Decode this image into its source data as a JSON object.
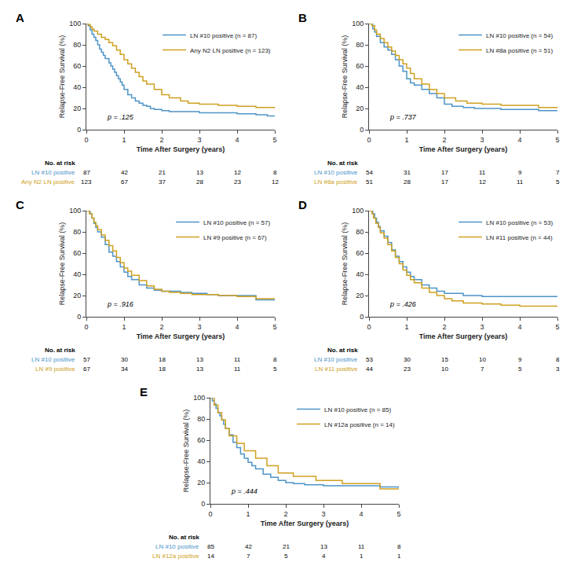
{
  "chart_data": [
    {
      "type": "line",
      "title": "A",
      "line_style": "step",
      "xlabel": "Time After Surgery (years)",
      "ylabel": "Relapse-Free Survival (%)",
      "xlim": [
        0,
        5
      ],
      "ylim": [
        0,
        100
      ],
      "xticks": [
        0,
        1,
        2,
        3,
        4,
        5
      ],
      "yticks": [
        0,
        20,
        40,
        60,
        80,
        100
      ],
      "grid": false,
      "legend": "upper right",
      "annotations": [
        {
          "text": "p = .125",
          "x": 0.5,
          "y": 7
        }
      ],
      "risk_header": "No. at risk",
      "risk_times": [
        0,
        1,
        2,
        3,
        4,
        5
      ],
      "series": [
        {
          "name": "LN #10 positive (n = 87)",
          "color": "#4D94C8",
          "risk_label": "LN #10 positive",
          "at_risk": [
            87,
            42,
            21,
            13,
            12,
            8
          ],
          "x": [
            0,
            0.05,
            0.1,
            0.15,
            0.2,
            0.25,
            0.3,
            0.35,
            0.4,
            0.45,
            0.5,
            0.6,
            0.65,
            0.7,
            0.75,
            0.8,
            0.85,
            0.9,
            0.95,
            1.0,
            1.1,
            1.2,
            1.3,
            1.4,
            1.5,
            1.6,
            1.7,
            1.8,
            2.0,
            2.2,
            2.5,
            2.7,
            3.0,
            3.5,
            4.0,
            4.5,
            4.8,
            5.0
          ],
          "values": [
            100,
            98,
            94,
            90,
            87,
            84,
            80,
            76,
            73,
            70,
            67,
            63,
            60,
            57,
            54,
            51,
            48,
            45,
            42,
            38,
            33,
            30,
            27,
            25,
            23,
            22,
            20,
            19,
            18,
            17,
            17,
            17,
            16,
            16,
            15,
            14,
            13,
            13
          ]
        },
        {
          "name": "Any N2 LN positive (n = 123)",
          "color": "#CFA020",
          "risk_label": "Any N2 LN positive",
          "at_risk": [
            123,
            67,
            37,
            28,
            23,
            12
          ],
          "x": [
            0,
            0.05,
            0.1,
            0.15,
            0.2,
            0.3,
            0.4,
            0.5,
            0.6,
            0.7,
            0.8,
            0.9,
            1.0,
            1.1,
            1.2,
            1.3,
            1.4,
            1.5,
            1.6,
            1.8,
            2.0,
            2.2,
            2.5,
            2.7,
            3.0,
            3.2,
            3.5,
            4.0,
            4.5,
            5.0
          ],
          "values": [
            100,
            99,
            97,
            95,
            93,
            90,
            87,
            85,
            82,
            79,
            75,
            71,
            66,
            62,
            58,
            54,
            50,
            46,
            43,
            38,
            33,
            30,
            27,
            25,
            24,
            24,
            23,
            22,
            21,
            20
          ]
        }
      ]
    },
    {
      "type": "line",
      "title": "B",
      "line_style": "step",
      "xlabel": "Time After Surgery (years)",
      "ylabel": "Relapse-Free Survival (%)",
      "xlim": [
        0,
        5
      ],
      "ylim": [
        0,
        100
      ],
      "xticks": [
        0,
        1,
        2,
        3,
        4,
        5
      ],
      "yticks": [
        0,
        20,
        40,
        60,
        80,
        100
      ],
      "grid": false,
      "legend": "upper right",
      "annotations": [
        {
          "text": "p = .737",
          "x": 0.5,
          "y": 7
        }
      ],
      "risk_header": "No. at risk",
      "risk_times": [
        0,
        1,
        2,
        3,
        4,
        5
      ],
      "series": [
        {
          "name": "LN #10 positive (n = 54)",
          "color": "#4D94C8",
          "risk_label": "LN #10 positive",
          "at_risk": [
            54,
            31,
            17,
            11,
            9,
            7
          ],
          "x": [
            0,
            0.1,
            0.15,
            0.2,
            0.3,
            0.4,
            0.5,
            0.6,
            0.7,
            0.8,
            0.9,
            1.0,
            1.1,
            1.2,
            1.4,
            1.6,
            1.8,
            2.0,
            2.2,
            2.5,
            2.8,
            3.0,
            3.5,
            4.0,
            4.5,
            5.0
          ],
          "values": [
            100,
            95,
            92,
            88,
            82,
            78,
            75,
            71,
            66,
            60,
            55,
            48,
            44,
            42,
            38,
            34,
            30,
            24,
            22,
            21,
            20,
            20,
            19,
            19,
            18,
            18
          ]
        },
        {
          "name": "LN #8a positive (n = 51)",
          "color": "#CFA020",
          "risk_label": "LN #8a positive",
          "at_risk": [
            51,
            28,
            17,
            12,
            11,
            5
          ],
          "x": [
            0,
            0.08,
            0.15,
            0.2,
            0.3,
            0.4,
            0.5,
            0.6,
            0.7,
            0.8,
            0.9,
            1.0,
            1.1,
            1.2,
            1.4,
            1.6,
            1.8,
            2.0,
            2.3,
            2.6,
            3.0,
            3.5,
            4.0,
            4.5,
            5.0
          ],
          "values": [
            100,
            98,
            94,
            90,
            86,
            82,
            78,
            74,
            70,
            66,
            62,
            58,
            53,
            48,
            43,
            38,
            34,
            30,
            27,
            25,
            24,
            23,
            23,
            21,
            20
          ]
        }
      ]
    },
    {
      "type": "line",
      "title": "C",
      "line_style": "step",
      "xlabel": "Time After Surgery (years)",
      "ylabel": "Relapse-Free Survival (%)",
      "xlim": [
        0,
        5
      ],
      "ylim": [
        0,
        100
      ],
      "xticks": [
        0,
        1,
        2,
        3,
        4,
        5
      ],
      "yticks": [
        0,
        20,
        40,
        60,
        80,
        100
      ],
      "grid": false,
      "legend": "upper right",
      "annotations": [
        {
          "text": "p = .916",
          "x": 0.5,
          "y": 7
        }
      ],
      "risk_header": "No. at risk",
      "risk_times": [
        0,
        1,
        2,
        3,
        4,
        5
      ],
      "series": [
        {
          "name": "LN #10 positive (n = 57)",
          "color": "#4D94C8",
          "risk_label": "LN #10 positive",
          "at_risk": [
            57,
            30,
            18,
            13,
            11,
            8
          ],
          "x": [
            0,
            0.1,
            0.15,
            0.2,
            0.25,
            0.3,
            0.4,
            0.5,
            0.6,
            0.7,
            0.8,
            0.9,
            1.0,
            1.1,
            1.2,
            1.4,
            1.6,
            1.8,
            2.0,
            2.2,
            2.5,
            2.8,
            3.0,
            3.2,
            3.5,
            4.0,
            4.5,
            5.0
          ],
          "values": [
            100,
            97,
            93,
            88,
            84,
            80,
            75,
            68,
            61,
            57,
            52,
            47,
            42,
            38,
            35,
            30,
            27,
            25,
            24,
            24,
            23,
            22,
            22,
            21,
            20,
            20,
            16,
            16
          ]
        },
        {
          "name": "LN #9 positive (n = 67)",
          "color": "#CFA020",
          "risk_label": "LN #9 positive",
          "at_risk": [
            67,
            34,
            18,
            13,
            11,
            5
          ],
          "x": [
            0,
            0.08,
            0.15,
            0.2,
            0.25,
            0.3,
            0.4,
            0.5,
            0.6,
            0.7,
            0.8,
            0.9,
            1.0,
            1.1,
            1.2,
            1.4,
            1.6,
            1.8,
            2.0,
            2.2,
            2.5,
            2.8,
            3.0,
            3.5,
            4.0,
            4.5,
            5.0
          ],
          "values": [
            100,
            97,
            93,
            89,
            86,
            82,
            77,
            72,
            67,
            62,
            56,
            51,
            46,
            43,
            39,
            34,
            29,
            26,
            24,
            23,
            22,
            21,
            21,
            20,
            19,
            17,
            17
          ]
        }
      ]
    },
    {
      "type": "line",
      "title": "D",
      "line_style": "step",
      "xlabel": "Time After Surgery (years)",
      "ylabel": "Relapse-Free Survival (%)",
      "xlim": [
        0,
        5
      ],
      "ylim": [
        0,
        100
      ],
      "xticks": [
        0,
        1,
        2,
        3,
        4,
        5
      ],
      "yticks": [
        0,
        20,
        40,
        60,
        80,
        100
      ],
      "grid": false,
      "legend": "upper right",
      "annotations": [
        {
          "text": "p = .426",
          "x": 0.5,
          "y": 7
        }
      ],
      "risk_header": "No. at risk",
      "risk_times": [
        0,
        1,
        2,
        3,
        4,
        5
      ],
      "series": [
        {
          "name": "LN #10 positive (n = 53)",
          "color": "#4D94C8",
          "risk_label": "LN #10 positive",
          "at_risk": [
            53,
            30,
            15,
            10,
            9,
            8
          ],
          "x": [
            0,
            0.1,
            0.15,
            0.2,
            0.25,
            0.3,
            0.4,
            0.5,
            0.6,
            0.7,
            0.8,
            0.9,
            1.0,
            1.1,
            1.2,
            1.4,
            1.6,
            1.8,
            2.0,
            2.5,
            3.0,
            3.5,
            4.0,
            4.5,
            5.0
          ],
          "values": [
            100,
            97,
            93,
            89,
            85,
            81,
            76,
            70,
            63,
            57,
            52,
            47,
            42,
            38,
            35,
            30,
            27,
            24,
            22,
            20,
            19,
            19,
            19,
            19,
            19
          ]
        },
        {
          "name": "LN #11 positive (n = 44)",
          "color": "#CFA020",
          "risk_label": "LN #11 positive",
          "at_risk": [
            44,
            23,
            10,
            7,
            5,
            3
          ],
          "x": [
            0,
            0.08,
            0.12,
            0.18,
            0.25,
            0.3,
            0.4,
            0.5,
            0.6,
            0.7,
            0.8,
            0.9,
            1.0,
            1.1,
            1.2,
            1.4,
            1.6,
            1.8,
            2.0,
            2.2,
            2.5,
            3.0,
            3.5,
            4.0,
            4.5,
            5.0
          ],
          "values": [
            100,
            97,
            93,
            88,
            84,
            79,
            74,
            68,
            62,
            56,
            50,
            44,
            39,
            35,
            32,
            27,
            23,
            20,
            17,
            15,
            13,
            12,
            11,
            10,
            10,
            10
          ]
        }
      ]
    },
    {
      "type": "line",
      "title": "E",
      "line_style": "step",
      "xlabel": "Time After Surgery (years)",
      "ylabel": "Relapse-Free Survival (%)",
      "xlim": [
        0,
        5
      ],
      "ylim": [
        0,
        100
      ],
      "xticks": [
        0,
        1,
        2,
        3,
        4,
        5
      ],
      "yticks": [
        0,
        20,
        40,
        60,
        80,
        100
      ],
      "grid": false,
      "legend": "upper right",
      "annotations": [
        {
          "text": "p = .444",
          "x": 0.5,
          "y": 7
        }
      ],
      "risk_header": "No. at risk",
      "risk_times": [
        0,
        1,
        2,
        3,
        4,
        5
      ],
      "series": [
        {
          "name": "LN #10 positive (n = 85)",
          "color": "#4D94C8",
          "risk_label": "LN #10 positive",
          "at_risk": [
            85,
            42,
            21,
            13,
            11,
            8
          ],
          "x": [
            0,
            0.05,
            0.1,
            0.15,
            0.2,
            0.25,
            0.3,
            0.35,
            0.4,
            0.5,
            0.6,
            0.7,
            0.8,
            0.9,
            1.0,
            1.1,
            1.2,
            1.4,
            1.6,
            1.8,
            2.0,
            2.2,
            2.5,
            3.0,
            3.5,
            4.0,
            4.5,
            5.0
          ],
          "values": [
            100,
            97,
            94,
            90,
            86,
            83,
            79,
            75,
            71,
            65,
            58,
            53,
            47,
            43,
            39,
            36,
            33,
            28,
            25,
            22,
            20,
            19,
            18,
            17,
            17,
            17,
            16,
            15
          ]
        },
        {
          "name": "LN #12a positive (n = 14)",
          "color": "#CFA020",
          "risk_label": "LN #12a positive",
          "at_risk": [
            14,
            7,
            5,
            4,
            1,
            1
          ],
          "x": [
            0,
            0.1,
            0.2,
            0.3,
            0.4,
            0.5,
            0.7,
            0.9,
            1.2,
            1.5,
            1.8,
            2.2,
            2.8,
            3.5,
            4.5,
            5.0
          ],
          "values": [
            100,
            93,
            86,
            79,
            71,
            64,
            57,
            50,
            43,
            36,
            29,
            26,
            22,
            19,
            14,
            14
          ]
        }
      ]
    }
  ]
}
